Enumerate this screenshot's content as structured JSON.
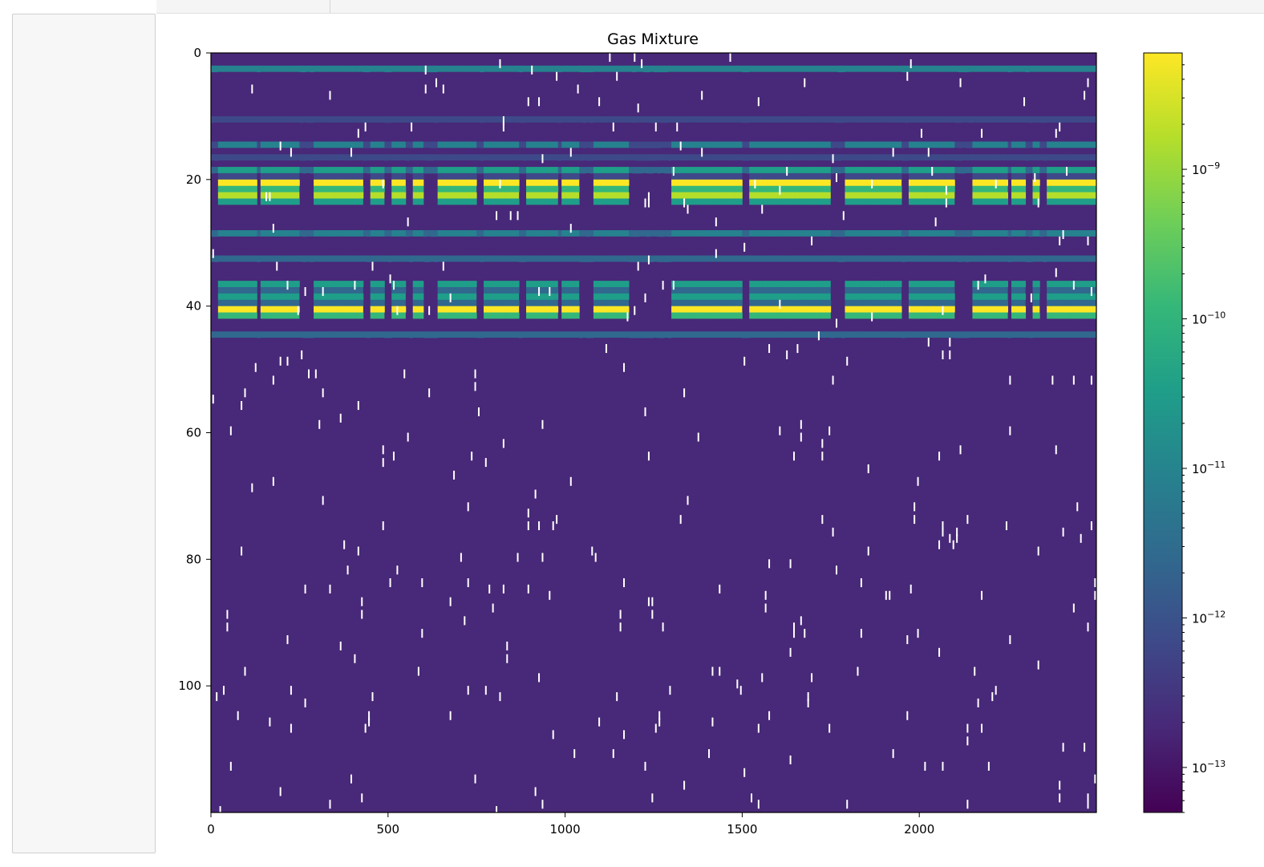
{
  "chart_data": {
    "type": "heatmap",
    "title": "Gas Mixture",
    "xlabel": "",
    "ylabel": "",
    "colormap": "viridis",
    "x_range": [
      0,
      2500
    ],
    "y_range": [
      0,
      120
    ],
    "y_inverted": true,
    "x_ticks": [
      0,
      500,
      1000,
      1500,
      2000
    ],
    "y_ticks": [
      0,
      20,
      40,
      60,
      80,
      100
    ],
    "x_tick_labels": [
      "0",
      "500",
      "1000",
      "1500",
      "2000"
    ],
    "y_tick_labels": [
      "0",
      "20",
      "40",
      "60",
      "80",
      "100"
    ],
    "colorbar": {
      "scale": "log",
      "range": [
        5e-14,
        6e-09
      ],
      "ticks": [
        1e-09,
        1e-10,
        1e-11,
        1e-12,
        1e-13
      ],
      "tick_bases": [
        "10",
        "10",
        "10",
        "10",
        "10"
      ],
      "tick_exponents": [
        "−9",
        "−10",
        "−11",
        "−12",
        "−13"
      ]
    },
    "baseline_value": 1e-13,
    "background_rows": [
      {
        "row": 2,
        "value": 5e-12
      },
      {
        "row": 10,
        "value": 8e-13
      },
      {
        "row": 14,
        "value": 7e-13
      },
      {
        "row": 16,
        "value": 1e-12
      },
      {
        "row": 18,
        "value": 2e-12
      },
      {
        "row": 28,
        "value": 3e-12
      },
      {
        "row": 32,
        "value": 3e-12
      },
      {
        "row": 44,
        "value": 2e-12
      }
    ],
    "active_segments": [
      [
        20,
        130
      ],
      [
        140,
        250
      ],
      [
        285,
        430
      ],
      [
        445,
        490
      ],
      [
        505,
        550
      ],
      [
        565,
        600
      ],
      [
        635,
        745
      ],
      [
        770,
        870
      ],
      [
        890,
        975
      ],
      [
        990,
        1040
      ],
      [
        1075,
        1180
      ],
      [
        1300,
        1500
      ],
      [
        1515,
        1745
      ],
      [
        1785,
        1945
      ],
      [
        1970,
        2095
      ],
      [
        2145,
        2245
      ],
      [
        2260,
        2300
      ],
      [
        2320,
        2340
      ],
      [
        2355,
        2500
      ]
    ],
    "active_rows": [
      {
        "row": 20,
        "value": 5e-09
      },
      {
        "row": 22,
        "value": 1e-09
      },
      {
        "row": 36,
        "value": 4e-11
      },
      {
        "row": 38,
        "value": 6e-11
      },
      {
        "row": 40,
        "value": 5e-09
      },
      {
        "row": 28,
        "value": 1e-11
      },
      {
        "row": 18,
        "value": 2e-11
      },
      {
        "row": 14,
        "value": 5e-12
      }
    ],
    "missing_value_rate": 0.012
  },
  "colors": {
    "viridis": [
      "#440154",
      "#482878",
      "#3e4989",
      "#31688e",
      "#26828e",
      "#1f9e89",
      "#35b779",
      "#6ece58",
      "#b5de2b",
      "#fde725"
    ],
    "missing": "#ffffff"
  }
}
